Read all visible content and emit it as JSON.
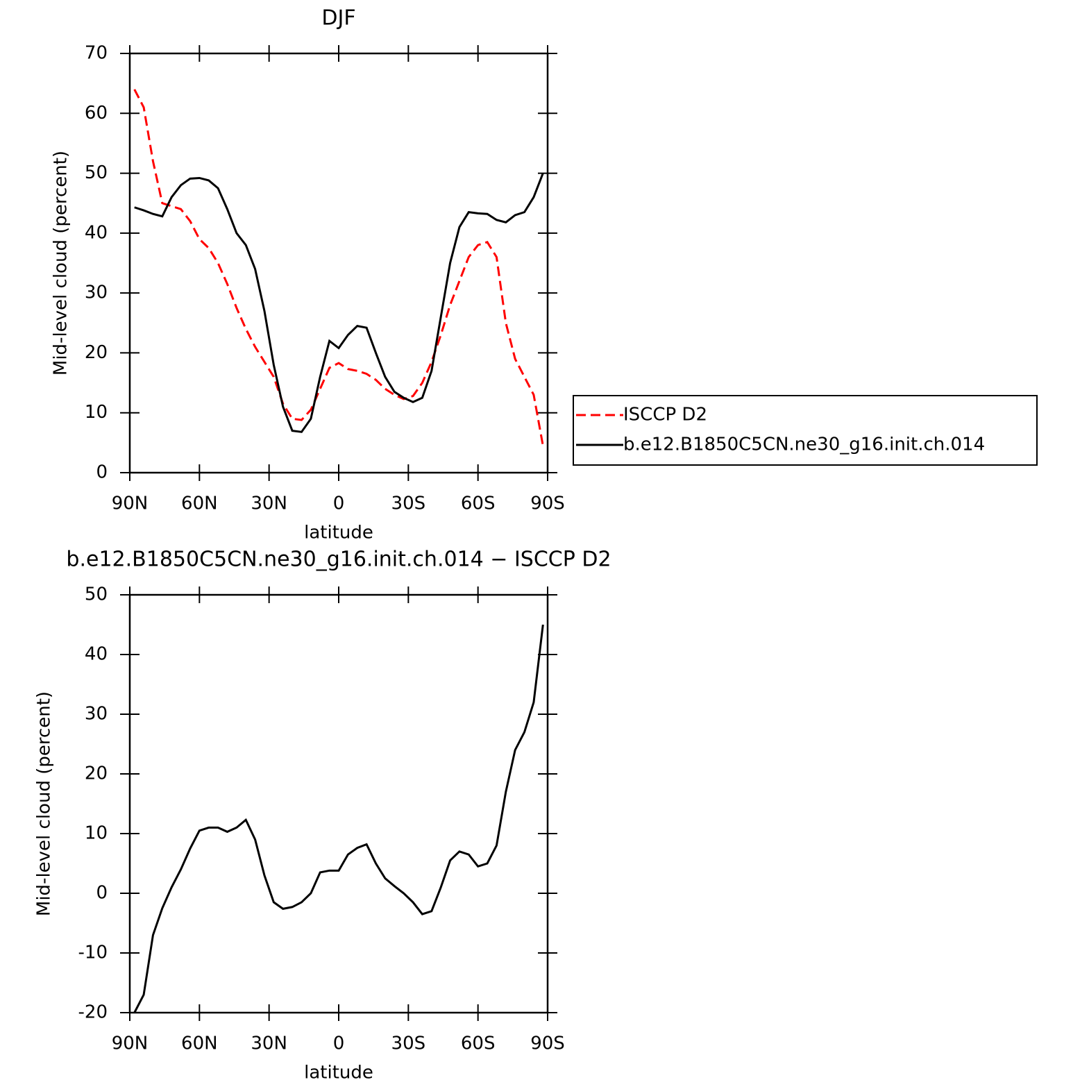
{
  "chart_data": [
    {
      "type": "line",
      "title": "DJF",
      "xlabel": "latitude",
      "ylabel": "Mid-level cloud (percent)",
      "x": [
        88,
        84,
        80,
        76,
        72,
        68,
        64,
        60,
        56,
        52,
        48,
        44,
        40,
        36,
        32,
        28,
        24,
        20,
        16,
        12,
        8,
        4,
        0,
        -4,
        -8,
        -12,
        -16,
        -20,
        -24,
        -28,
        -32,
        -36,
        -40,
        -44,
        -48,
        -52,
        -56,
        -60,
        -64,
        -68,
        -72,
        -76,
        -80,
        -84,
        -88
      ],
      "xlim": [
        90,
        -90
      ],
      "xticks": [
        {
          "value": 90,
          "label": "90N"
        },
        {
          "value": 60,
          "label": "60N"
        },
        {
          "value": 30,
          "label": "30N"
        },
        0,
        {
          "value": -30,
          "label": "30S"
        },
        {
          "value": -60,
          "label": "60S"
        },
        {
          "value": -90,
          "label": "90S"
        }
      ],
      "ylim": [
        0,
        70
      ],
      "yticks": [
        0,
        10,
        20,
        30,
        40,
        50,
        60,
        70
      ],
      "legend": "right",
      "series": [
        {
          "name": "ISCCP D2",
          "color": "#ff0000",
          "dash": true,
          "values": [
            64,
            61,
            52,
            45,
            44.5,
            44,
            42,
            39,
            37.5,
            35,
            31.5,
            27.5,
            24,
            21,
            18.5,
            16,
            11.5,
            9,
            8.8,
            10.5,
            14,
            17.5,
            18.3,
            17.3,
            17,
            16.5,
            15.5,
            14,
            13,
            12.3,
            12.8,
            15,
            18.5,
            23,
            28,
            32,
            36,
            38,
            38.5,
            36,
            25,
            19,
            16,
            13,
            4.5
          ]
        },
        {
          "name": "b.e12.B1850C5CN.ne30_g16.init.ch.014",
          "color": "#000000",
          "dash": false,
          "values": [
            44.3,
            43.8,
            43.2,
            42.8,
            46,
            48,
            49.1,
            49.2,
            48.8,
            47.5,
            44,
            40,
            38,
            34,
            27,
            18,
            11,
            7,
            6.8,
            9,
            16,
            22,
            20.8,
            23,
            24.5,
            24.2,
            20,
            16,
            13.5,
            12.5,
            11.8,
            12.5,
            17,
            26,
            35,
            41,
            43.5,
            43.3,
            43.2,
            42.2,
            41.8,
            43,
            43.5,
            46,
            50
          ]
        }
      ]
    },
    {
      "type": "line",
      "title": "b.e12.B1850C5CN.ne30_g16.init.ch.014 − ISCCP D2",
      "xlabel": "latitude",
      "ylabel": "Mid-level cloud (percent)",
      "x": [
        88,
        84,
        80,
        76,
        72,
        68,
        64,
        60,
        56,
        52,
        48,
        44,
        40,
        36,
        32,
        28,
        24,
        20,
        16,
        12,
        8,
        4,
        0,
        -4,
        -8,
        -12,
        -16,
        -20,
        -24,
        -28,
        -32,
        -36,
        -40,
        -44,
        -48,
        -52,
        -56,
        -60,
        -64,
        -68,
        -72,
        -76,
        -80,
        -84,
        -88
      ],
      "xlim": [
        90,
        -90
      ],
      "xticks": [
        {
          "value": 90,
          "label": "90N"
        },
        {
          "value": 60,
          "label": "60N"
        },
        {
          "value": 30,
          "label": "30N"
        },
        0,
        {
          "value": -30,
          "label": "30S"
        },
        {
          "value": -60,
          "label": "60S"
        },
        {
          "value": -90,
          "label": "90S"
        }
      ],
      "ylim": [
        -20,
        50
      ],
      "yticks": [
        -20,
        -10,
        0,
        10,
        20,
        30,
        40,
        50
      ],
      "series": [
        {
          "color": "#000000",
          "dash": false,
          "values": [
            -20,
            -17,
            -7,
            -2.5,
            1,
            4,
            7.5,
            10.5,
            11,
            11,
            10.3,
            11,
            12.3,
            9,
            3,
            -1.5,
            -2.6,
            -2.3,
            -1.5,
            0,
            3.5,
            3.8,
            3.8,
            6.5,
            7.6,
            8.2,
            5,
            2.5,
            1.2,
            0,
            -1.5,
            -3.5,
            -3,
            1,
            5.5,
            7,
            6.5,
            4.5,
            5,
            8,
            17,
            24,
            27,
            32,
            45
          ]
        }
      ]
    }
  ]
}
